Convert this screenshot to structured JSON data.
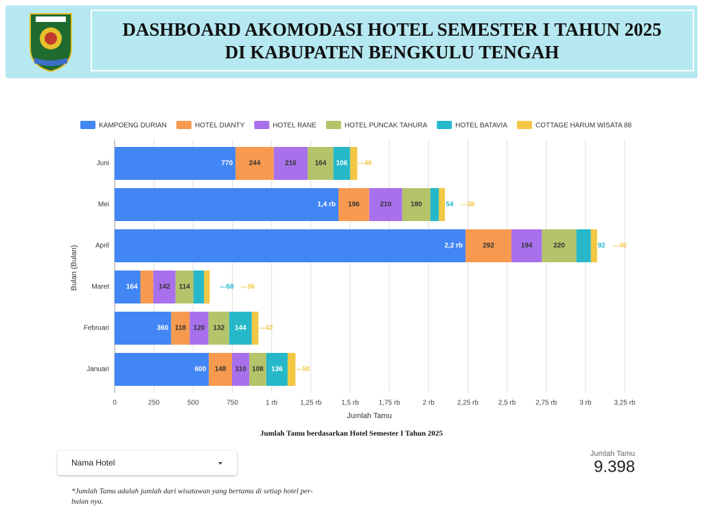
{
  "header": {
    "title_lines": [
      "DASHBOARD AKOMODASI HOTEL SEMESTER I TAHUN 2025",
      "DI KABUPATEN BENGKULU TENGAH"
    ]
  },
  "chart_data": {
    "type": "stacked-bar-horizontal",
    "title": "Jumlah Tamu berdasarkan Hotel Semester I Tahun 2025",
    "x_label": "Jumlah Tamu",
    "y_label": "Bulan (Bulan)",
    "categories": [
      "Juni",
      "Mei",
      "April",
      "Maret",
      "Februari",
      "Januari"
    ],
    "series": [
      {
        "name": "KAMPOENG DURIAN",
        "color": "#4285f4",
        "values": [
          770,
          1426,
          2236,
          164,
          360,
          600
        ],
        "value_labels": [
          "770",
          "1,4 rb",
          "2,2 rb",
          "164",
          "360",
          "600"
        ]
      },
      {
        "name": "HOTEL DIANTY",
        "color": "#f79a4f",
        "values": [
          244,
          196,
          292,
          82,
          118,
          148
        ]
      },
      {
        "name": "HOTEL RANE",
        "color": "#a970ec",
        "values": [
          216,
          210,
          194,
          142,
          120,
          110
        ]
      },
      {
        "name": "HOTEL PUNCAK TAHURA",
        "color": "#b3c46a",
        "values": [
          164,
          180,
          220,
          114,
          132,
          108
        ]
      },
      {
        "name": "HOTEL BATAVIA",
        "color": "#26b8c9",
        "values": [
          106,
          54,
          92,
          68,
          144,
          136
        ]
      },
      {
        "name": "COTTAGE HARUM WISATA 88",
        "color": "#f2c744",
        "values": [
          46,
          38,
          40,
          36,
          42,
          50
        ]
      }
    ],
    "xlim": [
      0,
      3250
    ],
    "xticks": [
      0,
      250,
      500,
      750,
      {
        "value": 1000,
        "label": "1 rb"
      },
      {
        "value": 1250,
        "label": "1,25 rb"
      },
      {
        "value": 1500,
        "label": "1,5 rb"
      },
      {
        "value": 1750,
        "label": "1,75 rb"
      },
      {
        "value": 2000,
        "label": "2 rb"
      },
      {
        "value": 2250,
        "label": "2,25 rb"
      },
      {
        "value": 2500,
        "label": "2,5 rb"
      },
      {
        "value": 2750,
        "label": "2,75 rb"
      },
      {
        "value": 3000,
        "label": "3 rb"
      },
      {
        "value": 3250,
        "label": "3,25 rb"
      }
    ],
    "grid": true,
    "legend": "top"
  },
  "filter": {
    "label": "Nama Hotel"
  },
  "scorecard": {
    "label": "Jumlah Tamu",
    "value": "9.398"
  },
  "footnote_lines": [
    "*Jumlah Tamu adalah jumlah dari wisatawan yang bertamu di setiap hotel per-",
    "bulan nya."
  ]
}
